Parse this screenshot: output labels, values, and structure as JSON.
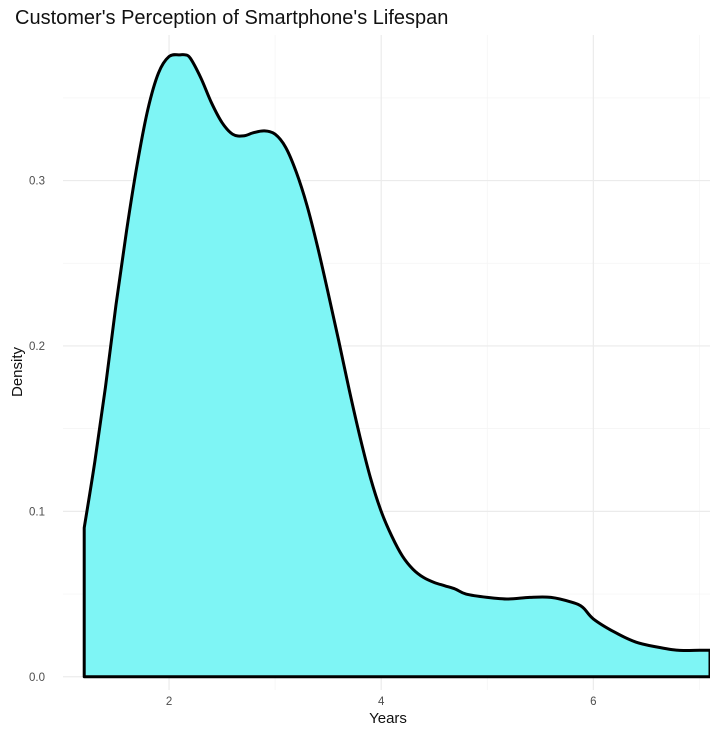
{
  "chart_data": {
    "type": "area",
    "title": "Customer's Perception of Smartphone's Lifespan",
    "xlabel": "Years",
    "ylabel": "Density",
    "xlim": [
      1.0,
      7.1
    ],
    "ylim": [
      -0.008,
      0.388
    ],
    "x_ticks": [
      2,
      4,
      6
    ],
    "x_tick_labels": [
      "2",
      "4",
      "6"
    ],
    "y_ticks": [
      0.0,
      0.1,
      0.2,
      0.3
    ],
    "y_tick_labels": [
      "0.0",
      "0.1",
      "0.2",
      "0.3"
    ],
    "grid": true,
    "fill_color": "#7ef5f5",
    "line_color": "#000000",
    "series": [
      {
        "x": [
          1.2,
          1.3,
          1.4,
          1.5,
          1.6,
          1.7,
          1.8,
          1.9,
          2.0,
          2.1,
          2.15,
          2.2,
          2.3,
          2.4,
          2.5,
          2.6,
          2.7,
          2.8,
          2.9,
          3.0,
          3.1,
          3.2,
          3.3,
          3.4,
          3.5,
          3.6,
          3.7,
          3.8,
          3.9,
          4.0,
          4.1,
          4.2,
          4.3,
          4.4,
          4.5,
          4.6,
          4.7,
          4.8,
          5.0,
          5.2,
          5.4,
          5.6,
          5.8,
          5.9,
          6.0,
          6.2,
          6.4,
          6.6,
          6.8,
          7.0,
          7.1
        ],
        "y": [
          0.09,
          0.13,
          0.175,
          0.225,
          0.27,
          0.31,
          0.343,
          0.365,
          0.375,
          0.376,
          0.376,
          0.374,
          0.362,
          0.347,
          0.335,
          0.328,
          0.327,
          0.329,
          0.33,
          0.328,
          0.32,
          0.305,
          0.285,
          0.26,
          0.232,
          0.203,
          0.173,
          0.145,
          0.12,
          0.1,
          0.085,
          0.073,
          0.065,
          0.06,
          0.057,
          0.055,
          0.053,
          0.05,
          0.048,
          0.047,
          0.048,
          0.048,
          0.045,
          0.042,
          0.035,
          0.027,
          0.021,
          0.018,
          0.016,
          0.016,
          0.016
        ]
      }
    ]
  }
}
